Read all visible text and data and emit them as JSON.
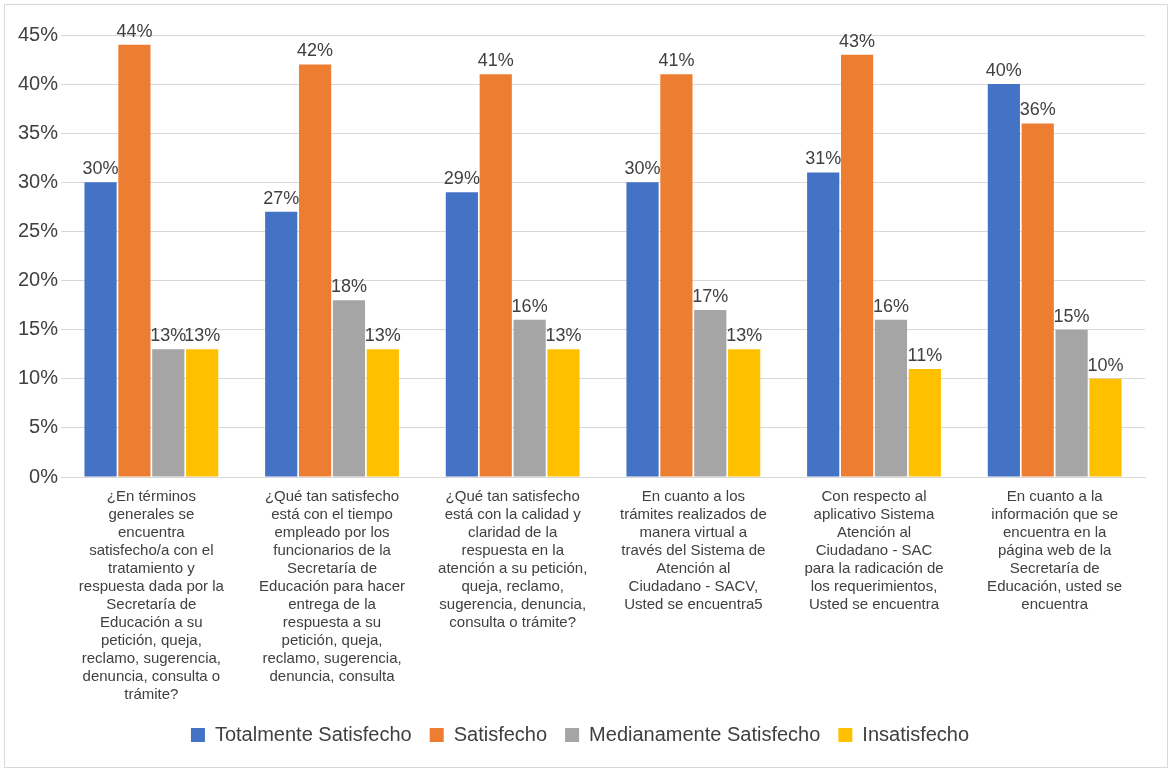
{
  "chart_data": {
    "type": "bar",
    "categories": [
      "¿En términos generales se encuentra satisfecho/a con el tratamiento y respuesta dada por la Secretaría de Educación a su petición, queja, reclamo, sugerencia, denuncia, consulta o trámite?",
      "¿Qué tan satisfecho está con el tiempo empleado por los funcionarios de la Secretaría de Educación para hacer entrega de la respuesta a su petición, queja, reclamo, sugerencia, denuncia, consulta",
      "¿Qué tan satisfecho está con la calidad y claridad de la respuesta en la atención a su petición, queja, reclamo, sugerencia, denuncia, consulta o trámite?",
      "En cuanto a los trámites realizados de manera virtual a través del Sistema de Atención al Ciudadano - SACV, Usted se encuentra5",
      "Con respecto al aplicativo Sistema Atención al Ciudadano - SAC para la radicación de los requerimientos, Usted se encuentra",
      "En cuanto a la información que se encuentra en la página web de la Secretaría de Educación, usted se encuentra"
    ],
    "series": [
      {
        "name": "Totalmente Satisfecho",
        "color": "#4472c4",
        "values": [
          30,
          27,
          29,
          30,
          31,
          40
        ],
        "value_labels": [
          "30%",
          "27%",
          "29%",
          "30%",
          "31%",
          "40%"
        ]
      },
      {
        "name": "Satisfecho",
        "color": "#ed7d31",
        "values": [
          44,
          42,
          41,
          41,
          43,
          36
        ],
        "value_labels": [
          "44%",
          "42%",
          "41%",
          "41%",
          "43%",
          "36%"
        ]
      },
      {
        "name": "Medianamente Satisfecho",
        "color": "#a5a5a5",
        "values": [
          13,
          18,
          16,
          17,
          16,
          15
        ],
        "value_labels": [
          "13%",
          "18%",
          "16%",
          "17%",
          "16%",
          "15%"
        ]
      },
      {
        "name": "Insatisfecho",
        "color": "#ffc000",
        "values": [
          13,
          13,
          13,
          13,
          11,
          10
        ],
        "value_labels": [
          "13%",
          "13%",
          "13%",
          "13%",
          "11%",
          "10%"
        ]
      }
    ],
    "ylim": [
      0,
      45
    ],
    "yticks": [
      {
        "value": 0,
        "label": "0%"
      },
      {
        "value": 5,
        "label": "5%"
      },
      {
        "value": 10,
        "label": "10%"
      },
      {
        "value": 15,
        "label": "15%"
      },
      {
        "value": 20,
        "label": "20%"
      },
      {
        "value": 25,
        "label": "25%"
      },
      {
        "value": 30,
        "label": "30%"
      },
      {
        "value": 35,
        "label": "35%"
      },
      {
        "value": 40,
        "label": "40%"
      },
      {
        "value": 45,
        "label": "45%"
      }
    ],
    "grid": "y",
    "legend": "bottom"
  }
}
